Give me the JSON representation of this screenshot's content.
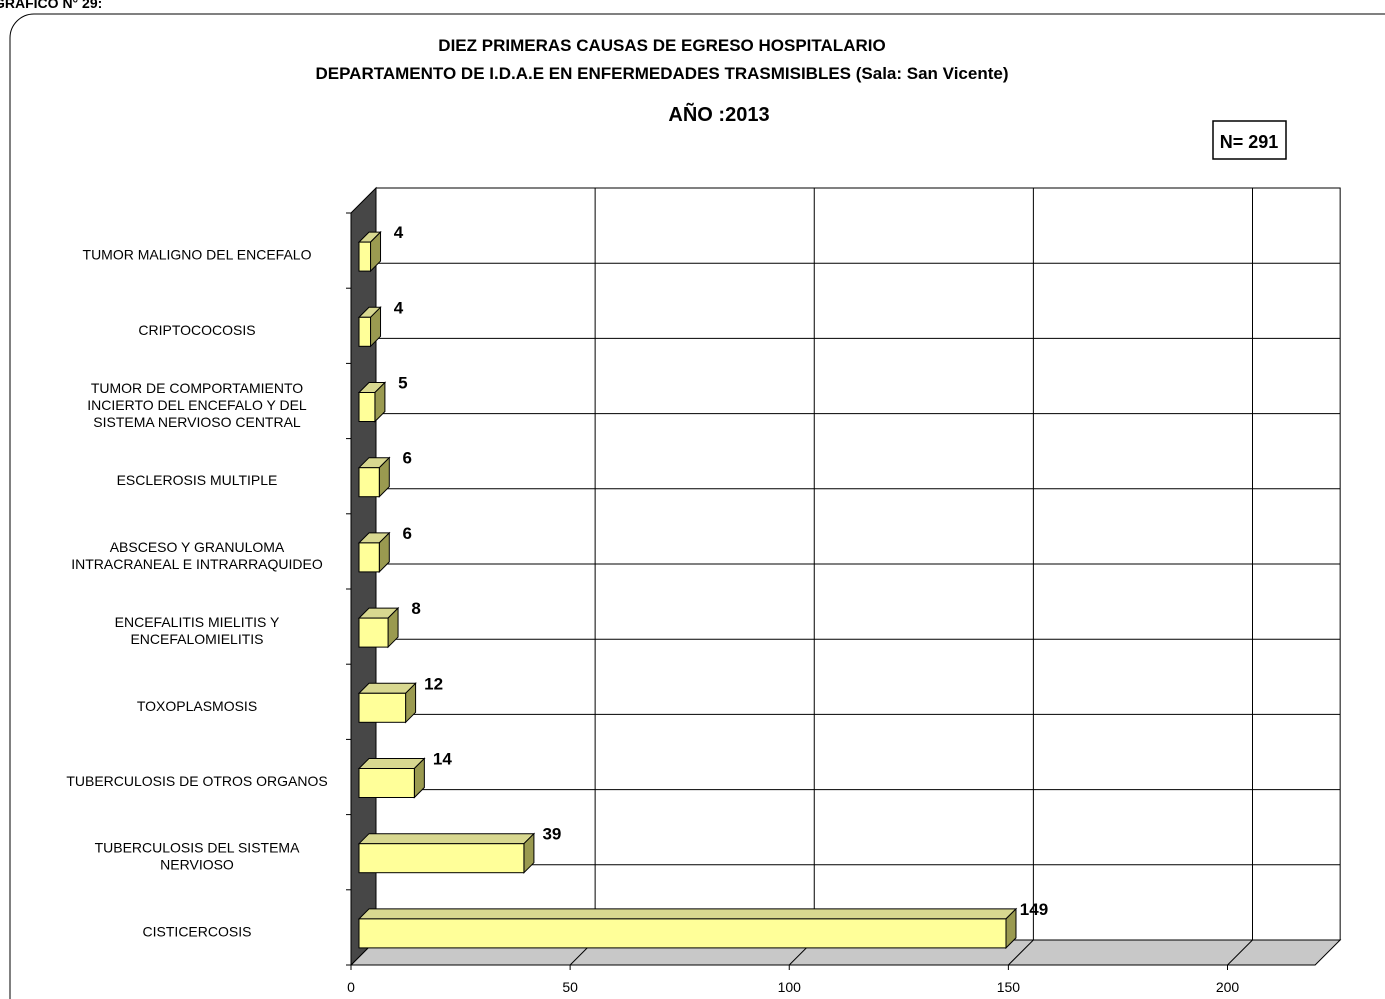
{
  "page_label": "GRAFICO N° 29:",
  "chart_data": {
    "type": "bar",
    "orientation": "horizontal",
    "three_d": true,
    "title": "DIEZ PRIMERAS CAUSAS DE EGRESO HOSPITALARIO",
    "subtitle_prefix": "DEPARTAMENTO DE I.D.A.E EN ENFERMEDADES TRASMISIBLES ",
    "subtitle_suffix": "(Sala: San Vicente)",
    "year_label": "AÑO :2013",
    "n_label": "N= 291",
    "categories": [
      [
        "TUMOR MALIGNO DEL ENCEFALO"
      ],
      [
        "CRIPTOCOCOSIS"
      ],
      [
        "TUMOR DE COMPORTAMIENTO",
        "INCIERTO DEL ENCEFALO Y DEL",
        "SISTEMA NERVIOSO CENTRAL"
      ],
      [
        "ESCLEROSIS MULTIPLE"
      ],
      [
        "ABSCESO Y GRANULOMA",
        "INTRACRANEAL E INTRARRAQUIDEO"
      ],
      [
        "ENCEFALITIS MIELITIS Y",
        "ENCEFALOMIELITIS"
      ],
      [
        "TOXOPLASMOSIS"
      ],
      [
        "TUBERCULOSIS DE OTROS ORGANOS"
      ],
      [
        "TUBERCULOSIS DEL SISTEMA",
        "NERVIOSO"
      ],
      [
        "CISTICERCOSIS"
      ]
    ],
    "values": [
      4,
      4,
      5,
      6,
      6,
      8,
      12,
      14,
      39,
      149
    ],
    "xlim": [
      0,
      220
    ],
    "x_ticks": [
      0,
      50,
      100,
      150,
      200
    ],
    "grid": true,
    "colors": {
      "bar_front": "#FFFF99",
      "bar_top": "#D8D890",
      "bar_side": "#9A9A50",
      "wall": "#474747",
      "floor": "#C8C8C8"
    }
  }
}
